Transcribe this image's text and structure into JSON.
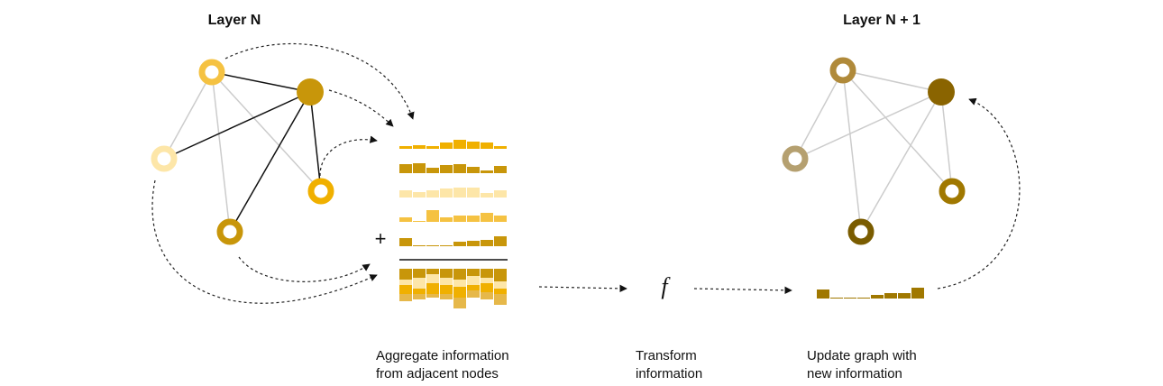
{
  "layers": {
    "left": {
      "title": "Layer N"
    },
    "right": {
      "title": "Layer N + 1"
    }
  },
  "operators": {
    "sum": "+",
    "function": "f"
  },
  "steps": [
    {
      "lines": [
        "Aggregate information",
        "from adjacent nodes"
      ]
    },
    {
      "lines": [
        "Transform",
        "information"
      ]
    },
    {
      "lines": [
        "Update graph with",
        "new information"
      ]
    }
  ]
}
